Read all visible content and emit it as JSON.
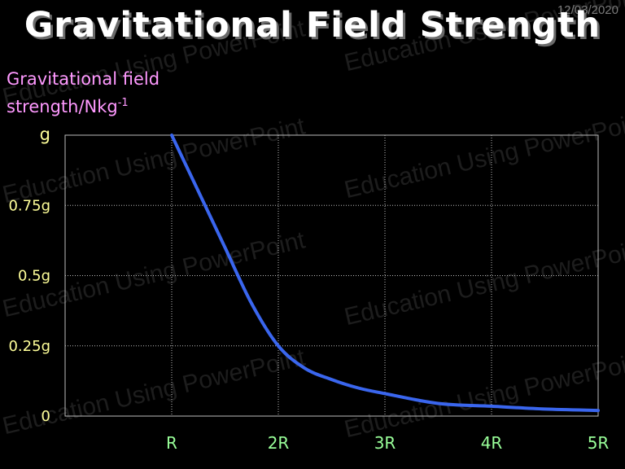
{
  "slide": {
    "title": "Gravitational Field Strength",
    "date": "12/03/2020",
    "watermark": "Education Using PowerPoint"
  },
  "colors": {
    "background": "#000000",
    "curve": "#3a66ee",
    "y_tick": "#ffff99",
    "x_tick": "#99ff99",
    "y_label": "#ff99ff",
    "grid": "#bbbbbb"
  },
  "chart_data": {
    "type": "line",
    "title": "Gravitational Field Strength",
    "ylabel_main": "Gravitational field strength/Nkg",
    "ylabel_sup": "-1",
    "xlabel": "",
    "x_unit": "R",
    "xlim": [
      0,
      5
    ],
    "ylim": [
      0,
      1
    ],
    "x_ticks": [
      {
        "value": 1,
        "label": "R"
      },
      {
        "value": 2,
        "label": "2R"
      },
      {
        "value": 3,
        "label": "3R"
      },
      {
        "value": 4,
        "label": "4R"
      },
      {
        "value": 5,
        "label": "5R"
      }
    ],
    "y_ticks": [
      {
        "value": 0,
        "label": "0"
      },
      {
        "value": 0.25,
        "label": "0.25g"
      },
      {
        "value": 0.5,
        "label": "0.5g"
      },
      {
        "value": 0.75,
        "label": "0.75g"
      },
      {
        "value": 1,
        "label": "g"
      }
    ],
    "grid": true,
    "series": [
      {
        "x": [
          1,
          1.25,
          1.5,
          1.75,
          2,
          2.25,
          2.5,
          2.75,
          3,
          3.5,
          4,
          4.5,
          5
        ],
        "y": [
          1,
          0.8,
          0.6,
          0.4,
          0.25,
          0.17,
          0.13,
          0.1,
          0.08,
          0.045,
          0.035,
          0.025,
          0.02
        ]
      }
    ]
  }
}
